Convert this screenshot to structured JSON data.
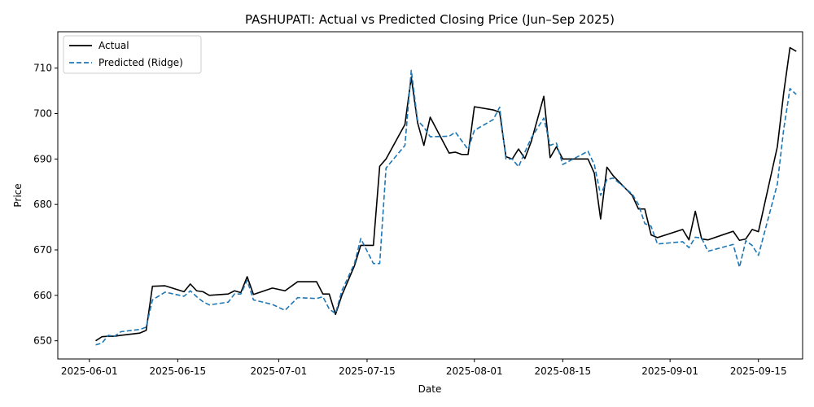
{
  "chart_data": {
    "type": "line",
    "title": "PASHUPATI: Actual vs Predicted Closing Price (Jun–Sep 2025)",
    "xlabel": "Date",
    "ylabel": "Price",
    "x_ticks": [
      "2025-06-01",
      "2025-06-15",
      "2025-07-01",
      "2025-07-15",
      "2025-08-01",
      "2025-08-15",
      "2025-09-01",
      "2025-09-15"
    ],
    "y_ticks": [
      650,
      660,
      670,
      680,
      690,
      700,
      710
    ],
    "xlim": [
      "2025-05-27",
      "2025-09-22"
    ],
    "ylim": [
      646,
      718
    ],
    "grid": false,
    "legend_position": "top-left",
    "series": [
      {
        "name": "Actual",
        "color": "#000000",
        "style": "solid",
        "points": [
          [
            "2025-06-02",
            650.0
          ],
          [
            "2025-06-03",
            650.9
          ],
          [
            "2025-06-04",
            651.0
          ],
          [
            "2025-06-05",
            651.0
          ],
          [
            "2025-06-06",
            651.2
          ],
          [
            "2025-06-09",
            651.7
          ],
          [
            "2025-06-10",
            652.3
          ],
          [
            "2025-06-11",
            662.0
          ],
          [
            "2025-06-13",
            662.1
          ],
          [
            "2025-06-16",
            660.8
          ],
          [
            "2025-06-17",
            662.5
          ],
          [
            "2025-06-18",
            661.0
          ],
          [
            "2025-06-19",
            660.8
          ],
          [
            "2025-06-20",
            660.0
          ],
          [
            "2025-06-23",
            660.3
          ],
          [
            "2025-06-24",
            661.0
          ],
          [
            "2025-06-25",
            660.6
          ],
          [
            "2025-06-26",
            664.1
          ],
          [
            "2025-06-27",
            660.2
          ],
          [
            "2025-06-30",
            661.6
          ],
          [
            "2025-07-02",
            661.0
          ],
          [
            "2025-07-04",
            663.0
          ],
          [
            "2025-07-07",
            663.0
          ],
          [
            "2025-07-08",
            660.3
          ],
          [
            "2025-07-09",
            660.3
          ],
          [
            "2025-07-10",
            655.8
          ],
          [
            "2025-07-11",
            660.0
          ],
          [
            "2025-07-13",
            666.5
          ],
          [
            "2025-07-14",
            671.0
          ],
          [
            "2025-07-16",
            671.0
          ],
          [
            "2025-07-17",
            688.4
          ],
          [
            "2025-07-18",
            690.0
          ],
          [
            "2025-07-21",
            697.6
          ],
          [
            "2025-07-22",
            708.0
          ],
          [
            "2025-07-23",
            698.0
          ],
          [
            "2025-07-24",
            693.0
          ],
          [
            "2025-07-25",
            699.2
          ],
          [
            "2025-07-28",
            691.3
          ],
          [
            "2025-07-29",
            691.5
          ],
          [
            "2025-07-30",
            691.0
          ],
          [
            "2025-07-31",
            691.0
          ],
          [
            "2025-08-01",
            701.5
          ],
          [
            "2025-08-04",
            700.8
          ],
          [
            "2025-08-05",
            700.3
          ],
          [
            "2025-08-06",
            690.5
          ],
          [
            "2025-08-07",
            690.0
          ],
          [
            "2025-08-08",
            692.2
          ],
          [
            "2025-08-09",
            690.1
          ],
          [
            "2025-08-10",
            693.8
          ],
          [
            "2025-08-12",
            703.8
          ],
          [
            "2025-08-13",
            690.3
          ],
          [
            "2025-08-14",
            692.7
          ],
          [
            "2025-08-15",
            690.0
          ],
          [
            "2025-08-19",
            690.0
          ],
          [
            "2025-08-20",
            686.9
          ],
          [
            "2025-08-21",
            676.8
          ],
          [
            "2025-08-22",
            688.2
          ],
          [
            "2025-08-23",
            686.3
          ],
          [
            "2025-08-26",
            682.0
          ],
          [
            "2025-08-27",
            679.0
          ],
          [
            "2025-08-28",
            679.0
          ],
          [
            "2025-08-29",
            673.3
          ],
          [
            "2025-08-30",
            672.7
          ],
          [
            "2025-09-03",
            674.5
          ],
          [
            "2025-09-04",
            672.2
          ],
          [
            "2025-09-05",
            678.5
          ],
          [
            "2025-09-06",
            672.4
          ],
          [
            "2025-09-07",
            672.2
          ],
          [
            "2025-09-11",
            674.1
          ],
          [
            "2025-09-12",
            672.1
          ],
          [
            "2025-09-13",
            672.4
          ],
          [
            "2025-09-14",
            674.5
          ],
          [
            "2025-09-15",
            674.0
          ],
          [
            "2025-09-18",
            692.7
          ],
          [
            "2025-09-19",
            704.5
          ],
          [
            "2025-09-20",
            714.5
          ],
          [
            "2025-09-21",
            713.7
          ]
        ]
      },
      {
        "name": "Predicted (Ridge)",
        "color": "#1f77b4",
        "style": "dashed",
        "points": [
          [
            "2025-06-02",
            649.1
          ],
          [
            "2025-06-03",
            649.5
          ],
          [
            "2025-06-04",
            651.2
          ],
          [
            "2025-06-05",
            651.0
          ],
          [
            "2025-06-06",
            652.0
          ],
          [
            "2025-06-09",
            652.5
          ],
          [
            "2025-06-10",
            653.0
          ],
          [
            "2025-06-11",
            659.0
          ],
          [
            "2025-06-13",
            660.7
          ],
          [
            "2025-06-16",
            659.8
          ],
          [
            "2025-06-17",
            661.0
          ],
          [
            "2025-06-18",
            659.7
          ],
          [
            "2025-06-19",
            658.6
          ],
          [
            "2025-06-20",
            657.9
          ],
          [
            "2025-06-23",
            658.5
          ],
          [
            "2025-06-24",
            660.3
          ],
          [
            "2025-06-25",
            660.3
          ],
          [
            "2025-06-26",
            663.3
          ],
          [
            "2025-06-27",
            659.0
          ],
          [
            "2025-06-30",
            658.0
          ],
          [
            "2025-07-02",
            656.7
          ],
          [
            "2025-07-04",
            659.5
          ],
          [
            "2025-07-07",
            659.3
          ],
          [
            "2025-07-08",
            659.7
          ],
          [
            "2025-07-09",
            657.0
          ],
          [
            "2025-07-10",
            656.0
          ],
          [
            "2025-07-11",
            661.0
          ],
          [
            "2025-07-13",
            667.0
          ],
          [
            "2025-07-14",
            672.5
          ],
          [
            "2025-07-16",
            667.0
          ],
          [
            "2025-07-17",
            667.0
          ],
          [
            "2025-07-18",
            688.0
          ],
          [
            "2025-07-21",
            693.0
          ],
          [
            "2025-07-22",
            709.5
          ],
          [
            "2025-07-23",
            698.5
          ],
          [
            "2025-07-24",
            697.0
          ],
          [
            "2025-07-25",
            694.9
          ],
          [
            "2025-07-28",
            695.0
          ],
          [
            "2025-07-29",
            695.9
          ],
          [
            "2025-07-30",
            694.0
          ],
          [
            "2025-07-31",
            692.1
          ],
          [
            "2025-08-01",
            696.3
          ],
          [
            "2025-08-04",
            698.7
          ],
          [
            "2025-08-05",
            701.4
          ],
          [
            "2025-08-06",
            690.0
          ],
          [
            "2025-08-07",
            690.0
          ],
          [
            "2025-08-08",
            688.3
          ],
          [
            "2025-08-09",
            691.5
          ],
          [
            "2025-08-10",
            694.6
          ],
          [
            "2025-08-12",
            699.0
          ],
          [
            "2025-08-13",
            693.0
          ],
          [
            "2025-08-14",
            693.5
          ],
          [
            "2025-08-15",
            688.8
          ],
          [
            "2025-08-19",
            691.7
          ],
          [
            "2025-08-20",
            688.8
          ],
          [
            "2025-08-21",
            682.0
          ],
          [
            "2025-08-22",
            685.5
          ],
          [
            "2025-08-23",
            685.8
          ],
          [
            "2025-08-26",
            682.3
          ],
          [
            "2025-08-27",
            680.0
          ],
          [
            "2025-08-28",
            675.8
          ],
          [
            "2025-08-29",
            675.2
          ],
          [
            "2025-08-30",
            671.3
          ],
          [
            "2025-09-03",
            671.8
          ],
          [
            "2025-09-04",
            670.5
          ],
          [
            "2025-09-05",
            672.8
          ],
          [
            "2025-09-06",
            672.6
          ],
          [
            "2025-09-07",
            669.7
          ],
          [
            "2025-09-11",
            671.2
          ],
          [
            "2025-09-12",
            666.2
          ],
          [
            "2025-09-13",
            672.0
          ],
          [
            "2025-09-14",
            671.0
          ],
          [
            "2025-09-15",
            668.8
          ],
          [
            "2025-09-18",
            684.5
          ],
          [
            "2025-09-19",
            696.5
          ],
          [
            "2025-09-20",
            705.5
          ],
          [
            "2025-09-21",
            704.2
          ]
        ]
      }
    ]
  }
}
